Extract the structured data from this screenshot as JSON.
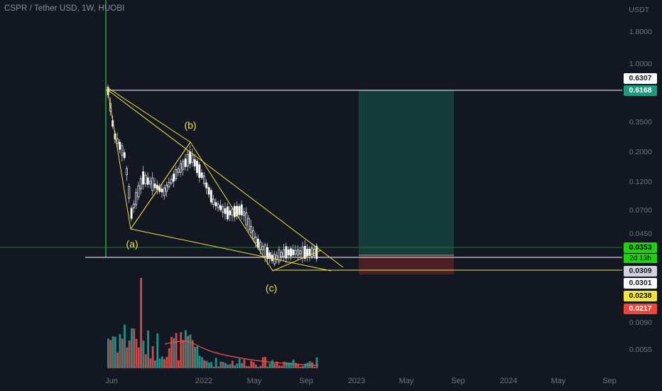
{
  "header": {
    "title": "CSPR / Tether USD, 1W, HUOBI"
  },
  "price_axis": {
    "currency": "USDT",
    "ticks": [
      "1.8000",
      "1.0000",
      "0.3500",
      "0.2000",
      "0.1200",
      "0.0700",
      "0.0450",
      "0.0090",
      "0.0055"
    ]
  },
  "time_axis": {
    "ticks": [
      "Jun",
      "2022",
      "May",
      "Sep",
      "2023",
      "May",
      "Sep",
      "2024",
      "May",
      "Sep"
    ]
  },
  "price_tags": [
    {
      "label": "0.6307",
      "bg": "#ffffff",
      "fg": "#131722"
    },
    {
      "label": "0.6168",
      "bg": "#22997a",
      "fg": "#ffffff"
    },
    {
      "label": "0.0353",
      "bg": "#1fd30c",
      "fg": "#000000"
    },
    {
      "label": "0.0309",
      "bg": "#d1d4dc",
      "fg": "#131722"
    },
    {
      "label": "0.0301",
      "bg": "#ffffff",
      "fg": "#131722"
    },
    {
      "label": "0.0238",
      "bg": "#f5e53b",
      "fg": "#131722"
    },
    {
      "label": "0.0217",
      "bg": "#f04438",
      "fg": "#ffffff"
    }
  ],
  "countdown": "2d 13h",
  "wave_labels": [
    "(a)",
    "(b)",
    "(c)"
  ],
  "colors": {
    "background": "#131722",
    "candle_up": "#ffffff",
    "candle_down": "#ffffff",
    "volume_up": "#26a69a",
    "volume_down": "#ef5350",
    "drawing": "#f2e13a",
    "target_zone": "#153b3b",
    "stop_zone": "#4a2024"
  }
}
